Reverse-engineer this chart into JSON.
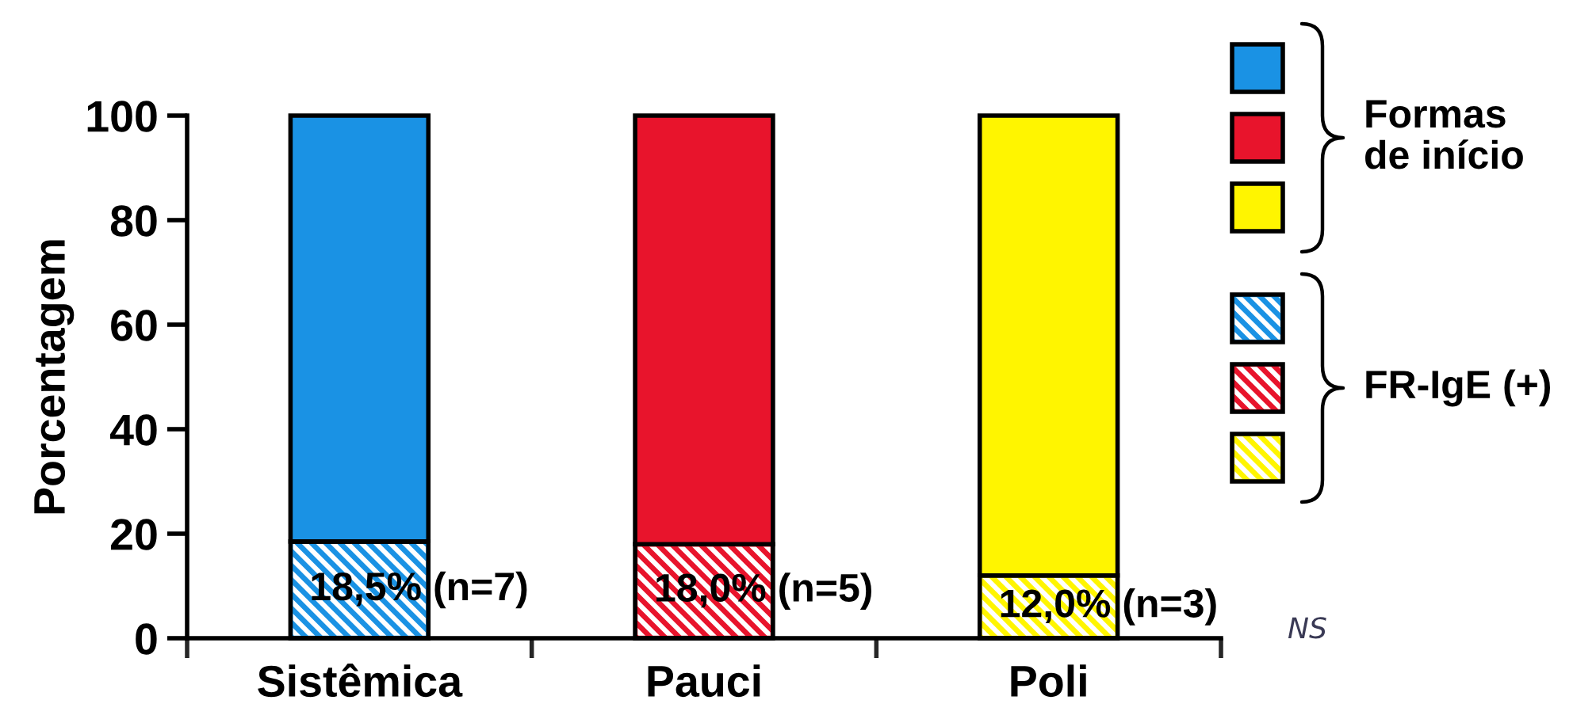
{
  "chart_data": {
    "type": "bar",
    "ylabel": "Porcentagem",
    "categories": [
      "Sistêmica",
      "Pauci",
      "Poli"
    ],
    "stacked": true,
    "series": [
      {
        "name": "FR-IgE (+)",
        "colors": [
          "#1a92e4",
          "#e8142c",
          "#fff500"
        ],
        "values": [
          18.5,
          18.0,
          12.0
        ],
        "value_labels": [
          "18,5% (n=7)",
          "18,0% (n=5)",
          "12,0% (n=3)"
        ]
      },
      {
        "name": "Formas\nde início",
        "colors": [
          "#1a92e4",
          "#e8142c",
          "#fff500"
        ],
        "values": [
          81.5,
          82.0,
          88.0
        ]
      }
    ],
    "ylim": [
      0,
      100
    ],
    "yticks": [
      0,
      20,
      40,
      60,
      80,
      100
    ],
    "legend": "right",
    "annotations": [
      "NS"
    ]
  }
}
